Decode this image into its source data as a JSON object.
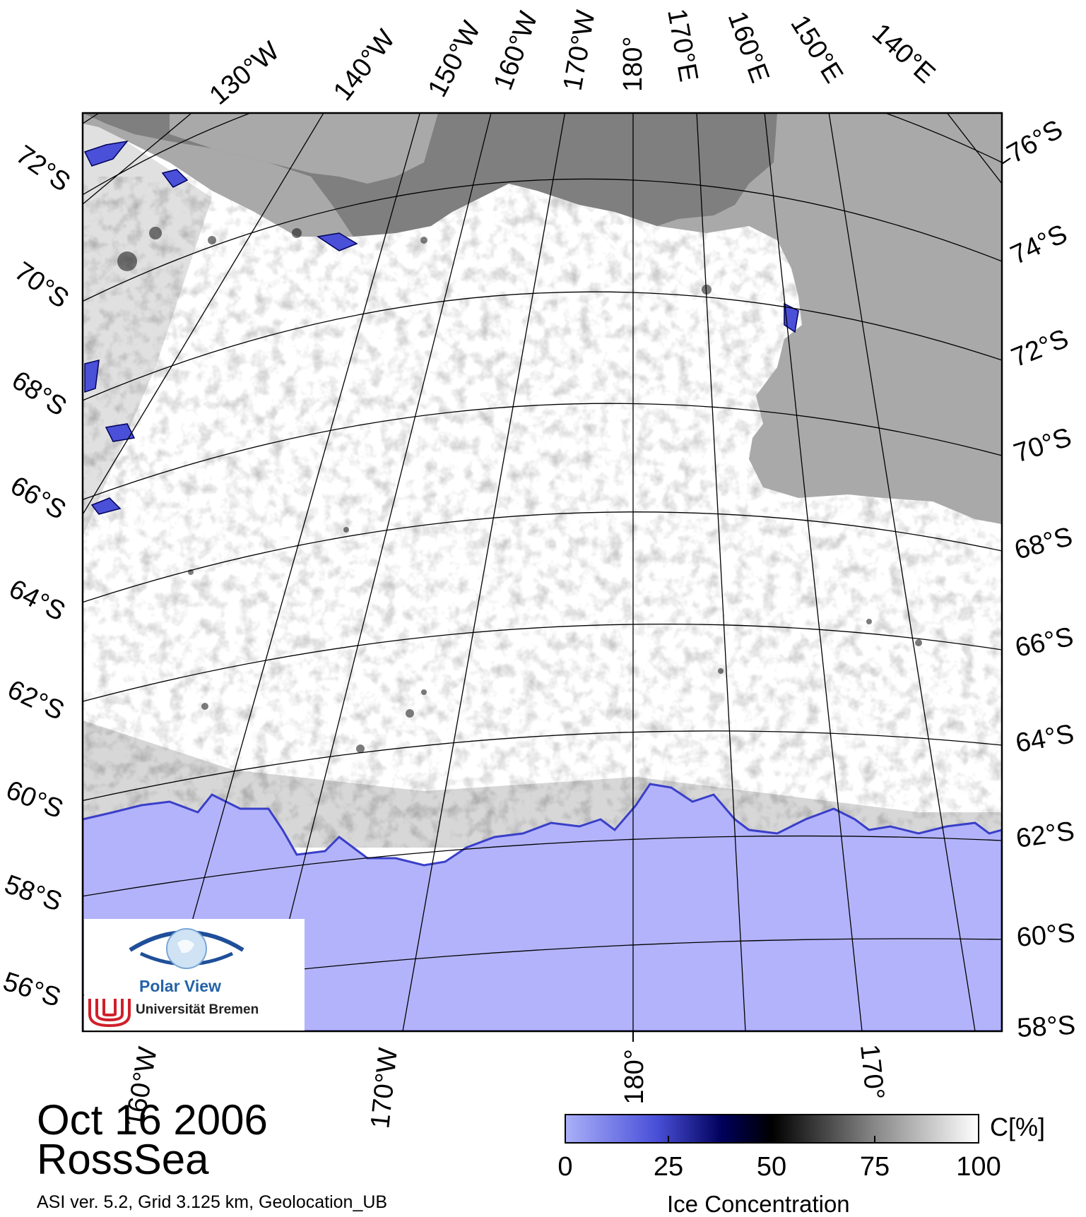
{
  "date": "Oct 16 2006",
  "region": "RossSea",
  "caption": "ASI ver. 5.2,  Grid 3.125 km, Geolocation_UB",
  "logo": {
    "name": "Polar View",
    "institution": "Universität Bremen"
  },
  "top_lon_labels": [
    "130°W",
    "140°W",
    "150°W",
    "160°W",
    "170°W",
    "180°",
    "170°E",
    "160°E",
    "150°E",
    "140°E"
  ],
  "left_lat_labels": [
    "72°S",
    "70°S",
    "68°S",
    "66°S",
    "64°S",
    "62°S",
    "60°S",
    "58°S",
    "56°S"
  ],
  "right_lat_labels": [
    "76°S",
    "74°S",
    "72°S",
    "70°S",
    "68°S",
    "66°S",
    "64°S",
    "62°S",
    "60°S",
    "58°S"
  ],
  "bottom_lon_labels": [
    "160°W",
    "170°W",
    "180°",
    "170°"
  ],
  "colorbar": {
    "title": "Ice Concentration",
    "unit": "C[%]",
    "ticks": [
      "0",
      "25",
      "50",
      "75",
      "100"
    ],
    "colors": [
      "#aab0f8",
      "#4a50d8",
      "#00005a",
      "#000000",
      "#888888",
      "#ffffff"
    ]
  },
  "legend_colors": {
    "open_water": "#b3b3fb",
    "land": "#a9a9a9",
    "ice_shelf": "#7f7f7f",
    "ice": "#ffffff"
  }
}
